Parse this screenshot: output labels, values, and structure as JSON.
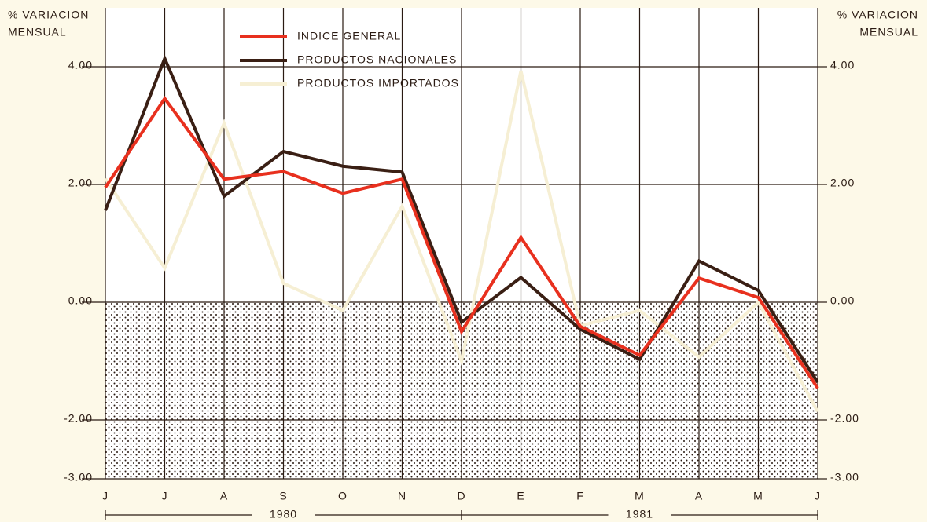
{
  "chart_data": {
    "type": "line",
    "ylabel": [
      "% VARIACION",
      "MENSUAL"
    ],
    "y2label": [
      "% VARIACION",
      "MENSUAL"
    ],
    "categories": [
      "J",
      "J",
      "A",
      "S",
      "O",
      "N",
      "D",
      "E",
      "F",
      "M",
      "A",
      "M",
      "J"
    ],
    "year_labels": [
      "1980",
      "1981"
    ],
    "series": [
      {
        "name": "INDICE GENERAL",
        "color": "#e8301e",
        "values": [
          1.95,
          3.46,
          2.09,
          2.22,
          1.85,
          2.09,
          -0.5,
          1.1,
          -0.41,
          -0.9,
          0.41,
          0.08,
          -1.46
        ]
      },
      {
        "name": "PRODUCTOS NACIONALES",
        "color": "#3a1f14",
        "values": [
          1.56,
          4.14,
          1.8,
          2.56,
          2.31,
          2.21,
          -0.34,
          0.42,
          -0.46,
          -0.97,
          0.7,
          0.2,
          -1.36
        ]
      },
      {
        "name": "PRODUCTOS IMPORTADOS",
        "color": "#f6efd4",
        "values": [
          2.1,
          0.58,
          3.04,
          0.32,
          -0.14,
          1.63,
          -1.0,
          3.93,
          -0.4,
          -0.14,
          -0.93,
          0.0,
          -1.86
        ]
      }
    ],
    "ylim": [
      -3,
      5
    ],
    "yticks": [
      {
        "value": 4,
        "label": "4.00"
      },
      {
        "value": 2,
        "label": "2.00"
      },
      {
        "value": 0,
        "label": "0.00"
      },
      {
        "value": -2,
        "label": "-2.00"
      },
      {
        "value": -3,
        "label": "-3.00"
      }
    ],
    "y2lim": [
      -3,
      5
    ],
    "y2ticks": [
      {
        "value": 4,
        "label": "4.00"
      },
      {
        "value": 2,
        "label": "2.00"
      },
      {
        "value": 0,
        "label": "0.00"
      },
      {
        "value": -2,
        "label": "-2.00"
      },
      {
        "value": -3,
        "label": "-3.00"
      }
    ],
    "grid": true,
    "negative_shading": true
  }
}
